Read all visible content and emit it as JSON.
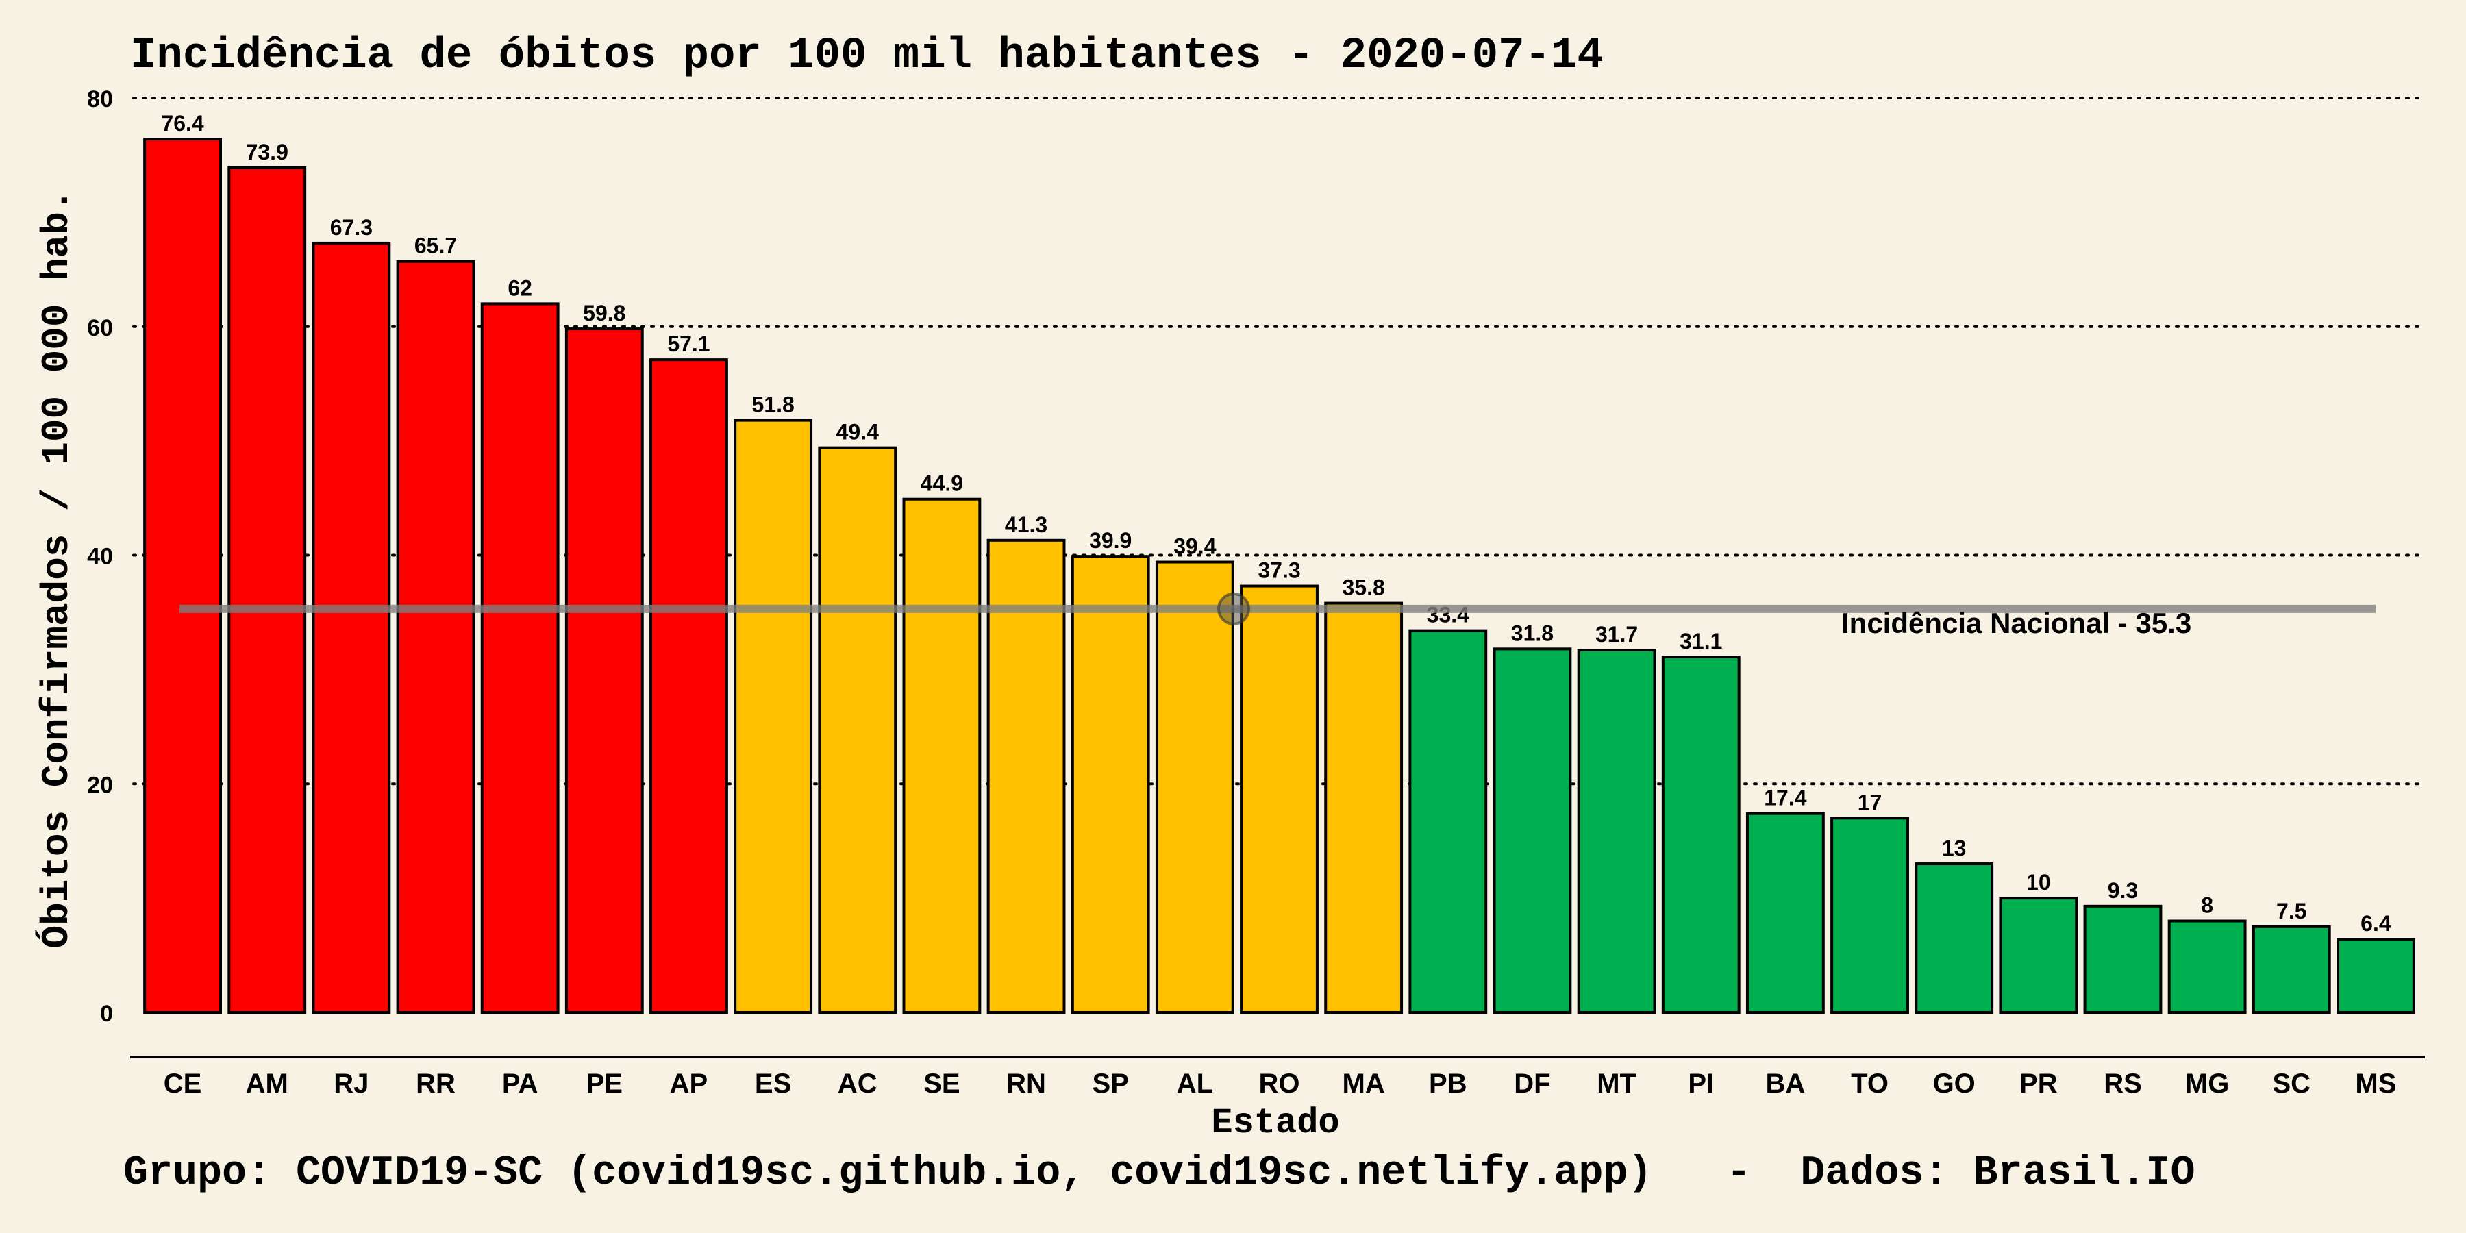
{
  "chart_data": {
    "type": "bar",
    "title": "Incidência de óbitos por 100 mil habitantes -  2020-07-14",
    "xlabel": "Estado",
    "ylabel": "Óbitos Confirmados / 100 000 hab.",
    "ylim": [
      0,
      80
    ],
    "yticks": [
      "0",
      "20",
      "40",
      "60",
      "80"
    ],
    "grid": "horizontal-dotted",
    "categories": [
      "CE",
      "AM",
      "RJ",
      "RR",
      "PA",
      "PE",
      "AP",
      "ES",
      "AC",
      "SE",
      "RN",
      "SP",
      "AL",
      "RO",
      "MA",
      "PB",
      "DF",
      "MT",
      "PI",
      "BA",
      "TO",
      "GO",
      "PR",
      "RS",
      "MG",
      "SC",
      "MS"
    ],
    "values": [
      76.4,
      73.9,
      67.3,
      65.7,
      62,
      59.8,
      57.1,
      51.8,
      49.4,
      44.9,
      41.3,
      39.9,
      39.4,
      37.3,
      35.8,
      33.4,
      31.8,
      31.7,
      31.1,
      17.4,
      17,
      13,
      10,
      9.3,
      8,
      7.5,
      6.4
    ],
    "value_labels": [
      "76.4",
      "73.9",
      "67.3",
      "65.7",
      "62",
      "59.8",
      "57.1",
      "51.8",
      "49.4",
      "44.9",
      "41.3",
      "39.9",
      "39.4",
      "37.3",
      "35.8",
      "33.4",
      "31.8",
      "31.7",
      "31.1",
      "17.4",
      "17",
      "13",
      "10",
      "9.3",
      "8",
      "7.5",
      "6.4"
    ],
    "bar_colors": [
      "#ff0000",
      "#ff0000",
      "#ff0000",
      "#ff0000",
      "#ff0000",
      "#ff0000",
      "#ff0000",
      "#ffc000",
      "#ffc000",
      "#ffc000",
      "#ffc000",
      "#ffc000",
      "#ffc000",
      "#ffc000",
      "#ffc000",
      "#00b050",
      "#00b050",
      "#00b050",
      "#00b050",
      "#00b050",
      "#00b050",
      "#00b050",
      "#00b050",
      "#00b050",
      "#00b050",
      "#00b050",
      "#00b050"
    ],
    "reference_line": {
      "value": 35.3,
      "label": "Incidência Nacional -  35.3",
      "color": "#808080"
    },
    "caption": "Grupo: COVID19-SC (covid19sc.github.io, covid19sc.netlify.app)   -  Dados: Brasil.IO"
  }
}
